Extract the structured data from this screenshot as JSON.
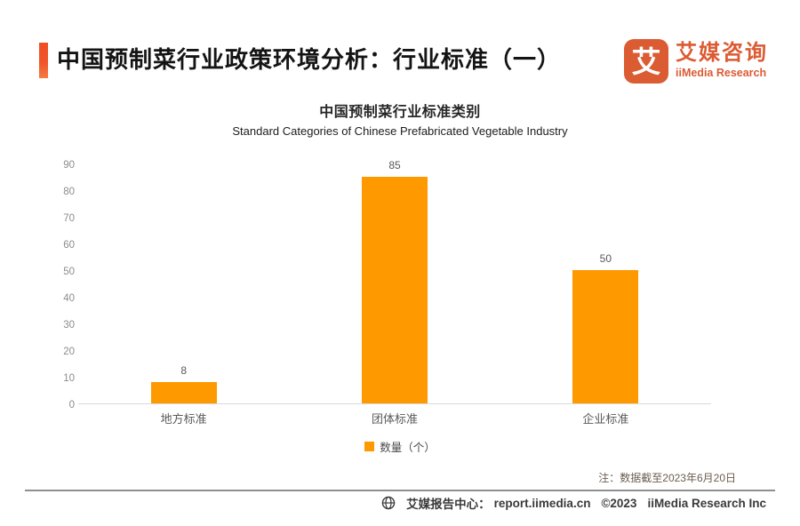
{
  "page": {
    "title": "中国预制菜行业政策环境分析：行业标准（一）"
  },
  "logo": {
    "glyph": "艾",
    "name_cn": "艾媒咨询",
    "name_en": "iiMedia Research"
  },
  "chart_data": {
    "type": "bar",
    "title": "中国预制菜行业标准类别",
    "subtitle": "Standard Categories of Chinese Prefabricated Vegetable Industry",
    "categories": [
      "地方标准",
      "团体标准",
      "企业标准"
    ],
    "values": [
      8,
      85,
      50
    ],
    "series_name": "数量（个）",
    "ylim": [
      0,
      90
    ],
    "ytick_step": 10,
    "grid": false,
    "legend_position": "bottom",
    "bar_color": "#FF9900"
  },
  "note": "注：数据截至2023年6月20日",
  "footer": {
    "source_label": "艾媒报告中心：",
    "url": "report.iimedia.cn",
    "copyright": "©2023",
    "company": "iiMedia Research Inc"
  },
  "colors": {
    "accent": "#F0542A",
    "brand": "#DB5B33",
    "bar": "#FF9900",
    "axis_text": "#8C8C8C",
    "label_text": "#595959",
    "note_text": "#6B5E4E",
    "footer_text": "#3A3A3A",
    "baseline": "#D9D9D9"
  }
}
